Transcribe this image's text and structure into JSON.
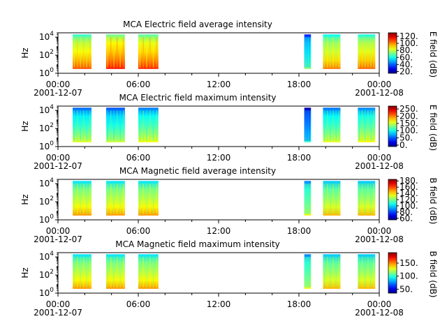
{
  "figure": {
    "x_tick_labels": [
      "00:00",
      "06:00",
      "12:00",
      "18:00",
      "00:00"
    ],
    "x_date_left": "2001-12-07",
    "x_date_right": "2001-12-08"
  },
  "chart_data": [
    {
      "type": "heatmap",
      "title": "MCA  Electric field average intensity",
      "ylabel": "Hz",
      "y_scale": "log",
      "y_tick_labels": [
        "10^0",
        "10^2",
        "10^4"
      ],
      "x_range_hours": [
        0,
        24
      ],
      "y_range": [
        1,
        30000
      ],
      "colorbar": {
        "label": "E field (dB)",
        "ticks": [
          "120.",
          "100.",
          "80.",
          "60.",
          "40.",
          "20."
        ],
        "range": [
          15,
          130
        ]
      },
      "blocks": [
        {
          "start": 1.1,
          "end": 2.5,
          "level": 0.62
        },
        {
          "start": 3.6,
          "end": 5.0,
          "level": 0.68
        },
        {
          "start": 6.0,
          "end": 7.5,
          "level": 0.66
        },
        {
          "start": 18.4,
          "end": 18.9,
          "level": 0.35
        },
        {
          "start": 19.8,
          "end": 21.1,
          "level": 0.58
        },
        {
          "start": 22.4,
          "end": 23.7,
          "level": 0.6
        }
      ]
    },
    {
      "type": "heatmap",
      "title": "MCA  Electric field maximum intensity",
      "ylabel": "Hz",
      "y_scale": "log",
      "y_tick_labels": [
        "10^0",
        "10^2",
        "10^4"
      ],
      "x_range_hours": [
        0,
        24
      ],
      "y_range": [
        1,
        30000
      ],
      "colorbar": {
        "label": "E field (dB)",
        "ticks": [
          "250.",
          "200.",
          "150.",
          "100.",
          "50.",
          "0."
        ],
        "range": [
          -10,
          270
        ]
      },
      "blocks": [
        {
          "start": 1.1,
          "end": 2.5,
          "level": 0.42
        },
        {
          "start": 3.6,
          "end": 5.0,
          "level": 0.4
        },
        {
          "start": 6.0,
          "end": 7.5,
          "level": 0.44
        },
        {
          "start": 18.4,
          "end": 18.9,
          "level": 0.25
        },
        {
          "start": 19.8,
          "end": 21.1,
          "level": 0.43
        },
        {
          "start": 22.4,
          "end": 23.7,
          "level": 0.45
        }
      ]
    },
    {
      "type": "heatmap",
      "title": "MCA  Magnetic field average intensity",
      "ylabel": "Hz",
      "y_scale": "log",
      "y_tick_labels": [
        "10^0",
        "10^2",
        "10^4"
      ],
      "x_range_hours": [
        0,
        24
      ],
      "y_range": [
        1,
        30000
      ],
      "colorbar": {
        "label": "B field (dB)",
        "ticks": [
          "180.",
          "160.",
          "140.",
          "120.",
          "100.",
          "80.",
          "60."
        ],
        "range": [
          55,
          185
        ]
      },
      "blocks": [
        {
          "start": 1.1,
          "end": 2.5,
          "level": 0.55
        },
        {
          "start": 3.6,
          "end": 5.0,
          "level": 0.55
        },
        {
          "start": 6.0,
          "end": 7.5,
          "level": 0.55
        },
        {
          "start": 18.4,
          "end": 18.9,
          "level": 0.45
        },
        {
          "start": 19.8,
          "end": 21.1,
          "level": 0.52
        },
        {
          "start": 22.4,
          "end": 23.7,
          "level": 0.52
        }
      ]
    },
    {
      "type": "heatmap",
      "title": "MCA  Magnetic field maximum intensity",
      "ylabel": "Hz",
      "y_scale": "log",
      "y_tick_labels": [
        "10^0",
        "10^2",
        "10^4"
      ],
      "x_range_hours": [
        0,
        24
      ],
      "y_range": [
        1,
        30000
      ],
      "colorbar": {
        "label": "B field (dB)",
        "ticks": [
          "150.",
          "100.",
          "50."
        ],
        "range": [
          35,
          190
        ]
      },
      "blocks": [
        {
          "start": 1.1,
          "end": 2.5,
          "level": 0.55
        },
        {
          "start": 3.6,
          "end": 5.0,
          "level": 0.55
        },
        {
          "start": 6.0,
          "end": 7.5,
          "level": 0.55
        },
        {
          "start": 18.4,
          "end": 18.9,
          "level": 0.45
        },
        {
          "start": 19.8,
          "end": 21.1,
          "level": 0.52
        },
        {
          "start": 22.4,
          "end": 23.7,
          "level": 0.52
        }
      ]
    }
  ]
}
